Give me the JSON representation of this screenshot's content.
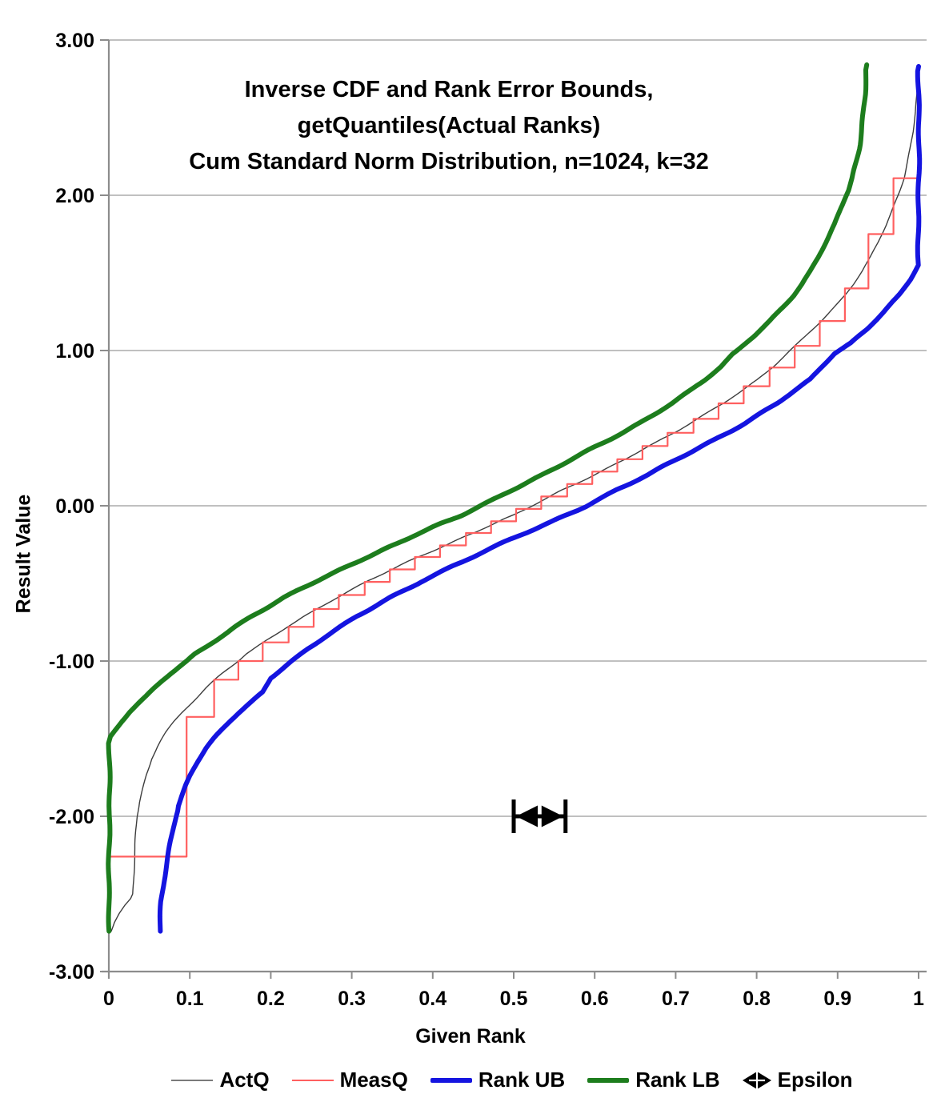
{
  "chart_data": {
    "type": "line",
    "title_lines": [
      "Inverse CDF and Rank Error Bounds,",
      "getQuantiles(Actual Ranks)",
      "Cum Standard Norm Distribution, n=1024, k=32"
    ],
    "x_axis": {
      "label": "Given Rank",
      "min": 0,
      "max": 1,
      "ticks": [
        "0",
        "0.1",
        "0.2",
        "0.3",
        "0.4",
        "0.5",
        "0.6",
        "0.7",
        "0.8",
        "0.9",
        "1"
      ],
      "tick_values": [
        0,
        0.1,
        0.2,
        0.3,
        0.4,
        0.5,
        0.6,
        0.7,
        0.8,
        0.9,
        1
      ]
    },
    "y_axis": {
      "label": "Result Value",
      "min": -3,
      "max": 3,
      "ticks": [
        "3.00",
        "2.00",
        "1.00",
        "0.00",
        "-1.00",
        "-2.00",
        "-3.00"
      ],
      "tick_values": [
        3,
        2,
        1,
        0,
        -1,
        -2,
        -3
      ]
    },
    "grid_on": true,
    "grid_color": "#ababab",
    "axis_color": "#8c8c8c",
    "legend_position": "bottom",
    "series": [
      {
        "name": "ActQ",
        "type": "line",
        "color": "#3d3d3d",
        "width": 1.4,
        "wiggle": 0.9,
        "points": [
          [
            0.003,
            -2.74
          ],
          [
            0.007,
            -2.68
          ],
          [
            0.013,
            -2.62
          ],
          [
            0.02,
            -2.57
          ],
          [
            0.027,
            -2.53
          ],
          [
            0.0296,
            -2.5
          ],
          [
            0.031,
            -2.33
          ],
          [
            0.033,
            -2.15
          ],
          [
            0.035,
            -2.0
          ],
          [
            0.038,
            -1.91
          ],
          [
            0.042,
            -1.83
          ],
          [
            0.047,
            -1.73
          ],
          [
            0.053,
            -1.63
          ],
          [
            0.06,
            -1.55
          ],
          [
            0.064,
            -1.51
          ],
          [
            0.07,
            -1.46
          ],
          [
            0.08,
            -1.39
          ],
          [
            0.09,
            -1.33
          ],
          [
            0.1,
            -1.28
          ],
          [
            0.11,
            -1.23
          ],
          [
            0.12,
            -1.175
          ],
          [
            0.13,
            -1.125
          ],
          [
            0.14,
            -1.08
          ],
          [
            0.15,
            -1.04
          ],
          [
            0.16,
            -1.0
          ],
          [
            0.17,
            -0.955
          ],
          [
            0.18,
            -0.92
          ],
          [
            0.19,
            -0.885
          ],
          [
            0.2,
            -0.85
          ],
          [
            0.22,
            -0.78
          ],
          [
            0.24,
            -0.715
          ],
          [
            0.26,
            -0.655
          ],
          [
            0.28,
            -0.595
          ],
          [
            0.3,
            -0.54
          ],
          [
            0.32,
            -0.485
          ],
          [
            0.34,
            -0.435
          ],
          [
            0.36,
            -0.385
          ],
          [
            0.38,
            -0.335
          ],
          [
            0.4,
            -0.29
          ],
          [
            0.42,
            -0.245
          ],
          [
            0.44,
            -0.195
          ],
          [
            0.46,
            -0.15
          ],
          [
            0.48,
            -0.105
          ],
          [
            0.5,
            -0.06
          ],
          [
            0.523,
            0.0
          ],
          [
            0.54,
            0.045
          ],
          [
            0.56,
            0.1
          ],
          [
            0.58,
            0.15
          ],
          [
            0.6,
            0.2
          ],
          [
            0.62,
            0.255
          ],
          [
            0.64,
            0.31
          ],
          [
            0.66,
            0.365
          ],
          [
            0.68,
            0.42
          ],
          [
            0.7,
            0.475
          ],
          [
            0.72,
            0.535
          ],
          [
            0.74,
            0.6
          ],
          [
            0.76,
            0.665
          ],
          [
            0.78,
            0.735
          ],
          [
            0.8,
            0.81
          ],
          [
            0.82,
            0.895
          ],
          [
            0.841,
            1.0
          ],
          [
            0.86,
            1.09
          ],
          [
            0.88,
            1.19
          ],
          [
            0.9,
            1.3
          ],
          [
            0.91,
            1.36
          ],
          [
            0.92,
            1.43
          ],
          [
            0.93,
            1.51
          ],
          [
            0.94,
            1.6
          ],
          [
            0.95,
            1.7
          ],
          [
            0.96,
            1.81
          ],
          [
            0.97,
            1.94
          ],
          [
            0.977,
            2.03
          ],
          [
            0.982,
            2.11
          ],
          [
            0.987,
            2.22
          ],
          [
            0.99,
            2.3
          ],
          [
            0.993,
            2.41
          ],
          [
            0.996,
            2.54
          ],
          [
            0.998,
            2.65
          ],
          [
            0.9995,
            2.8
          ]
        ]
      },
      {
        "name": "MeasQ",
        "type": "step",
        "color": "#ff5f5f",
        "width": 2.2,
        "wiggle": 0,
        "steps": [
          [
            0.0,
            -2.26
          ],
          [
            0.096,
            -1.36
          ],
          [
            0.13,
            -1.12
          ],
          [
            0.16,
            -1.0
          ],
          [
            0.19,
            -0.88
          ],
          [
            0.222,
            -0.78
          ],
          [
            0.253,
            -0.665
          ],
          [
            0.284,
            -0.575
          ],
          [
            0.316,
            -0.49
          ],
          [
            0.347,
            -0.41
          ],
          [
            0.378,
            -0.33
          ],
          [
            0.409,
            -0.255
          ],
          [
            0.441,
            -0.175
          ],
          [
            0.472,
            -0.1
          ],
          [
            0.503,
            -0.02
          ],
          [
            0.534,
            0.06
          ],
          [
            0.566,
            0.14
          ],
          [
            0.597,
            0.22
          ],
          [
            0.628,
            0.3
          ],
          [
            0.659,
            0.385
          ],
          [
            0.69,
            0.47
          ],
          [
            0.722,
            0.56
          ],
          [
            0.753,
            0.66
          ],
          [
            0.784,
            0.77
          ],
          [
            0.816,
            0.89
          ],
          [
            0.847,
            1.03
          ],
          [
            0.878,
            1.19
          ],
          [
            0.909,
            1.4
          ],
          [
            0.938,
            1.75
          ],
          [
            0.969,
            2.11
          ]
        ]
      },
      {
        "name": "Rank UB",
        "type": "line",
        "color": "#1414e0",
        "width": 6,
        "wiggle": 1.3,
        "points": [
          [
            0.0635,
            -2.74
          ],
          [
            0.065,
            -2.55
          ],
          [
            0.068,
            -2.42
          ],
          [
            0.071,
            -2.32
          ],
          [
            0.073,
            -2.26
          ],
          [
            0.076,
            -2.16
          ],
          [
            0.079,
            -2.07
          ],
          [
            0.082,
            -2.0
          ],
          [
            0.086,
            -1.93
          ],
          [
            0.09,
            -1.87
          ],
          [
            0.095,
            -1.8
          ],
          [
            0.1,
            -1.74
          ],
          [
            0.105,
            -1.69
          ],
          [
            0.11,
            -1.645
          ],
          [
            0.12,
            -1.565
          ],
          [
            0.13,
            -1.5
          ],
          [
            0.14,
            -1.44
          ],
          [
            0.15,
            -1.385
          ],
          [
            0.16,
            -1.335
          ],
          [
            0.17,
            -1.29
          ],
          [
            0.18,
            -1.245
          ],
          [
            0.19,
            -1.2
          ],
          [
            0.2,
            -1.105
          ],
          [
            0.226,
            -1.0
          ],
          [
            0.246,
            -0.92
          ],
          [
            0.266,
            -0.85
          ],
          [
            0.306,
            -0.715
          ],
          [
            0.346,
            -0.595
          ],
          [
            0.386,
            -0.485
          ],
          [
            0.426,
            -0.385
          ],
          [
            0.466,
            -0.29
          ],
          [
            0.506,
            -0.195
          ],
          [
            0.546,
            -0.105
          ],
          [
            0.589,
            0.0
          ],
          [
            0.626,
            0.1
          ],
          [
            0.666,
            0.2
          ],
          [
            0.706,
            0.31
          ],
          [
            0.746,
            0.42
          ],
          [
            0.786,
            0.535
          ],
          [
            0.826,
            0.665
          ],
          [
            0.866,
            0.81
          ],
          [
            0.896,
            0.98
          ],
          [
            0.916,
            1.045
          ],
          [
            0.936,
            1.14
          ],
          [
            0.956,
            1.245
          ],
          [
            0.976,
            1.36
          ],
          [
            0.99,
            1.46
          ],
          [
            1.0,
            1.55
          ],
          [
            1.0,
            2.83
          ]
        ]
      },
      {
        "name": "Rank LB",
        "type": "line",
        "color": "#1d7d1d",
        "width": 6,
        "wiggle": 1.3,
        "points": [
          [
            0.0005,
            -2.74
          ],
          [
            0.0005,
            -1.53
          ],
          [
            0.002,
            -1.49
          ],
          [
            0.006,
            -1.46
          ],
          [
            0.016,
            -1.39
          ],
          [
            0.026,
            -1.33
          ],
          [
            0.036,
            -1.28
          ],
          [
            0.046,
            -1.23
          ],
          [
            0.056,
            -1.175
          ],
          [
            0.066,
            -1.125
          ],
          [
            0.076,
            -1.08
          ],
          [
            0.086,
            -1.04
          ],
          [
            0.096,
            -1.0
          ],
          [
            0.106,
            -0.955
          ],
          [
            0.116,
            -0.92
          ],
          [
            0.126,
            -0.885
          ],
          [
            0.136,
            -0.85
          ],
          [
            0.156,
            -0.78
          ],
          [
            0.176,
            -0.715
          ],
          [
            0.196,
            -0.655
          ],
          [
            0.216,
            -0.595
          ],
          [
            0.236,
            -0.54
          ],
          [
            0.256,
            -0.485
          ],
          [
            0.276,
            -0.435
          ],
          [
            0.296,
            -0.385
          ],
          [
            0.316,
            -0.335
          ],
          [
            0.336,
            -0.29
          ],
          [
            0.356,
            -0.245
          ],
          [
            0.376,
            -0.195
          ],
          [
            0.396,
            -0.15
          ],
          [
            0.416,
            -0.105
          ],
          [
            0.436,
            -0.06
          ],
          [
            0.459,
            0.0
          ],
          [
            0.476,
            0.045
          ],
          [
            0.496,
            0.1
          ],
          [
            0.516,
            0.15
          ],
          [
            0.536,
            0.2
          ],
          [
            0.556,
            0.255
          ],
          [
            0.576,
            0.31
          ],
          [
            0.596,
            0.365
          ],
          [
            0.616,
            0.42
          ],
          [
            0.636,
            0.475
          ],
          [
            0.656,
            0.535
          ],
          [
            0.676,
            0.6
          ],
          [
            0.696,
            0.665
          ],
          [
            0.716,
            0.735
          ],
          [
            0.736,
            0.81
          ],
          [
            0.756,
            0.895
          ],
          [
            0.77,
            0.97
          ],
          [
            0.777,
            1.0
          ],
          [
            0.796,
            1.09
          ],
          [
            0.816,
            1.19
          ],
          [
            0.836,
            1.3
          ],
          [
            0.846,
            1.36
          ],
          [
            0.856,
            1.43
          ],
          [
            0.866,
            1.51
          ],
          [
            0.876,
            1.6
          ],
          [
            0.886,
            1.7
          ],
          [
            0.896,
            1.81
          ],
          [
            0.906,
            1.94
          ],
          [
            0.913,
            2.03
          ],
          [
            0.918,
            2.11
          ],
          [
            0.923,
            2.22
          ],
          [
            0.926,
            2.3
          ],
          [
            0.929,
            2.41
          ],
          [
            0.932,
            2.54
          ],
          [
            0.934,
            2.65
          ],
          [
            0.936,
            2.84
          ]
        ]
      }
    ],
    "epsilon_marker": {
      "name": "Epsilon",
      "y": -2.0,
      "x_start": 0.5,
      "x_end": 0.564,
      "color": "#000000"
    },
    "legend": [
      {
        "label": "ActQ",
        "swatch": "thin-line",
        "color": "#7a7a7a"
      },
      {
        "label": "MeasQ",
        "swatch": "thin-line",
        "color": "#ff5f5f"
      },
      {
        "label": "Rank UB",
        "swatch": "thick-line",
        "color": "#1414e0"
      },
      {
        "label": "Rank LB",
        "swatch": "thick-line",
        "color": "#1d7d1d"
      },
      {
        "label": "Epsilon",
        "swatch": "epsilon-icon",
        "color": "#000000"
      }
    ]
  }
}
